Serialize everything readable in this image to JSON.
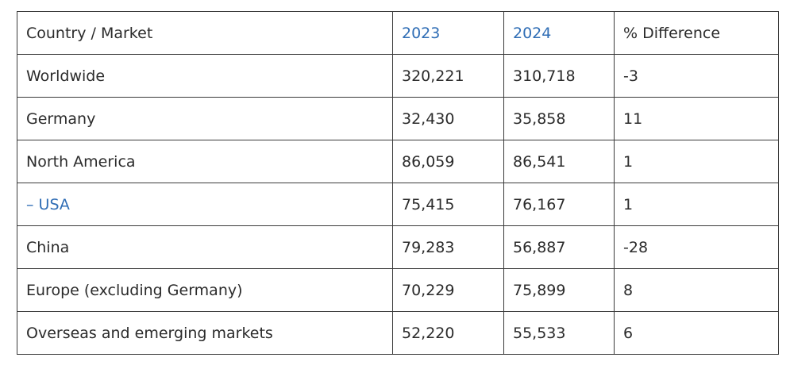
{
  "table": {
    "headers": [
      {
        "text": "Country / Market",
        "link": false
      },
      {
        "text": "2023",
        "link": true
      },
      {
        "text": "2024",
        "link": true
      },
      {
        "text": "% Difference",
        "link": false
      }
    ],
    "rows": [
      {
        "market": "Worldwide",
        "market_link": false,
        "y2023": "320,221",
        "y2024": "310,718",
        "diff": "-3"
      },
      {
        "market": "Germany",
        "market_link": false,
        "y2023": "32,430",
        "y2024": "35,858",
        "diff": "11"
      },
      {
        "market": "North America",
        "market_link": false,
        "y2023": "86,059",
        "y2024": "86,541",
        "diff": "1"
      },
      {
        "market": "– USA",
        "market_link": true,
        "y2023": "75,415",
        "y2024": "76,167",
        "diff": "1"
      },
      {
        "market": "China",
        "market_link": false,
        "y2023": "79,283",
        "y2024": "56,887",
        "diff": "-28"
      },
      {
        "market": "Europe (excluding Germany)",
        "market_link": false,
        "y2023": "70,229",
        "y2024": "75,899",
        "diff": "8"
      },
      {
        "market": "Overseas and emerging markets",
        "market_link": false,
        "y2023": "52,220",
        "y2024": "55,533",
        "diff": "6"
      }
    ]
  },
  "colors": {
    "link": "#2f6db5",
    "text": "#2b2b2b",
    "border": "#3a3a3a"
  }
}
